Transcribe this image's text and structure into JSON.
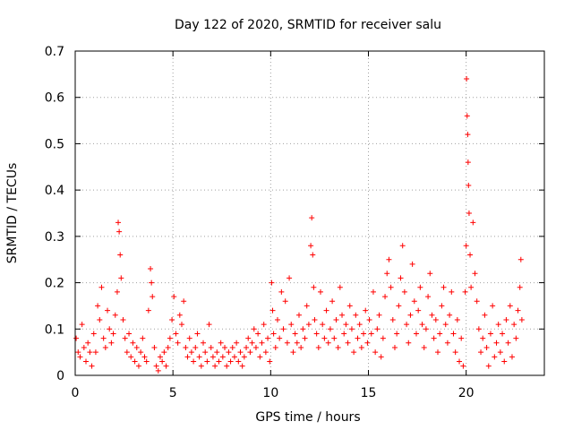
{
  "chart_data": {
    "type": "scatter",
    "title": "Day 122 of 2020, SRMTID for receiver salu",
    "xlabel": "GPS time / hours",
    "ylabel": "SRMTID / TECUs",
    "xlim": [
      0,
      24
    ],
    "ylim": [
      0,
      0.7
    ],
    "xticks": [
      0,
      5,
      10,
      15,
      20
    ],
    "xtick_labels": [
      "0",
      "5",
      "10",
      "15",
      "20"
    ],
    "yticks": [
      0,
      0.1,
      0.2,
      0.3,
      0.4,
      0.5,
      0.6,
      0.7
    ],
    "ytick_labels": [
      "0",
      "0.1",
      "0.2",
      "0.3",
      "0.4",
      "0.5",
      "0.6",
      "0.7"
    ],
    "grid": true,
    "marker": "+",
    "series": [
      {
        "name": "SRMTID",
        "color": "#ff0000",
        "points": [
          [
            0.05,
            0.08
          ],
          [
            0.15,
            0.05
          ],
          [
            0.25,
            0.04
          ],
          [
            0.35,
            0.11
          ],
          [
            0.45,
            0.06
          ],
          [
            0.55,
            0.03
          ],
          [
            0.65,
            0.07
          ],
          [
            0.75,
            0.05
          ],
          [
            0.85,
            0.02
          ],
          [
            0.95,
            0.09
          ],
          [
            1.05,
            0.05
          ],
          [
            1.15,
            0.15
          ],
          [
            1.25,
            0.12
          ],
          [
            1.35,
            0.19
          ],
          [
            1.45,
            0.08
          ],
          [
            1.55,
            0.06
          ],
          [
            1.65,
            0.14
          ],
          [
            1.75,
            0.1
          ],
          [
            1.85,
            0.07
          ],
          [
            1.95,
            0.09
          ],
          [
            2.05,
            0.13
          ],
          [
            2.15,
            0.18
          ],
          [
            2.2,
            0.33
          ],
          [
            2.25,
            0.31
          ],
          [
            2.3,
            0.26
          ],
          [
            2.35,
            0.21
          ],
          [
            2.45,
            0.12
          ],
          [
            2.55,
            0.08
          ],
          [
            2.65,
            0.05
          ],
          [
            2.75,
            0.09
          ],
          [
            2.85,
            0.04
          ],
          [
            2.95,
            0.07
          ],
          [
            3.05,
            0.03
          ],
          [
            3.15,
            0.06
          ],
          [
            3.25,
            0.02
          ],
          [
            3.35,
            0.05
          ],
          [
            3.45,
            0.08
          ],
          [
            3.55,
            0.04
          ],
          [
            3.65,
            0.03
          ],
          [
            3.75,
            0.14
          ],
          [
            3.85,
            0.23
          ],
          [
            3.9,
            0.2
          ],
          [
            3.95,
            0.17
          ],
          [
            4.05,
            0.06
          ],
          [
            4.15,
            0.02
          ],
          [
            4.25,
            0.01
          ],
          [
            4.35,
            0.04
          ],
          [
            4.45,
            0.03
          ],
          [
            4.55,
            0.05
          ],
          [
            4.65,
            0.02
          ],
          [
            4.75,
            0.06
          ],
          [
            4.85,
            0.08
          ],
          [
            4.95,
            0.12
          ],
          [
            5.05,
            0.17
          ],
          [
            5.15,
            0.09
          ],
          [
            5.25,
            0.07
          ],
          [
            5.35,
            0.13
          ],
          [
            5.45,
            0.11
          ],
          [
            5.55,
            0.16
          ],
          [
            5.65,
            0.06
          ],
          [
            5.75,
            0.04
          ],
          [
            5.85,
            0.08
          ],
          [
            5.95,
            0.05
          ],
          [
            6.05,
            0.03
          ],
          [
            6.15,
            0.06
          ],
          [
            6.25,
            0.09
          ],
          [
            6.35,
            0.04
          ],
          [
            6.45,
            0.02
          ],
          [
            6.55,
            0.07
          ],
          [
            6.65,
            0.05
          ],
          [
            6.75,
            0.03
          ],
          [
            6.85,
            0.11
          ],
          [
            6.95,
            0.06
          ],
          [
            7.05,
            0.04
          ],
          [
            7.15,
            0.02
          ],
          [
            7.25,
            0.05
          ],
          [
            7.35,
            0.03
          ],
          [
            7.45,
            0.07
          ],
          [
            7.55,
            0.04
          ],
          [
            7.65,
            0.06
          ],
          [
            7.75,
            0.02
          ],
          [
            7.85,
            0.05
          ],
          [
            7.95,
            0.03
          ],
          [
            8.05,
            0.06
          ],
          [
            8.15,
            0.04
          ],
          [
            8.25,
            0.07
          ],
          [
            8.35,
            0.03
          ],
          [
            8.45,
            0.05
          ],
          [
            8.55,
            0.02
          ],
          [
            8.65,
            0.04
          ],
          [
            8.75,
            0.06
          ],
          [
            8.85,
            0.08
          ],
          [
            8.95,
            0.05
          ],
          [
            9.05,
            0.07
          ],
          [
            9.15,
            0.1
          ],
          [
            9.25,
            0.06
          ],
          [
            9.35,
            0.09
          ],
          [
            9.45,
            0.04
          ],
          [
            9.55,
            0.07
          ],
          [
            9.65,
            0.11
          ],
          [
            9.75,
            0.05
          ],
          [
            9.85,
            0.08
          ],
          [
            9.95,
            0.03
          ],
          [
            10.05,
            0.2
          ],
          [
            10.1,
            0.14
          ],
          [
            10.15,
            0.09
          ],
          [
            10.25,
            0.06
          ],
          [
            10.35,
            0.12
          ],
          [
            10.45,
            0.08
          ],
          [
            10.55,
            0.18
          ],
          [
            10.65,
            0.1
          ],
          [
            10.75,
            0.16
          ],
          [
            10.85,
            0.07
          ],
          [
            10.95,
            0.21
          ],
          [
            11.05,
            0.11
          ],
          [
            11.15,
            0.05
          ],
          [
            11.25,
            0.09
          ],
          [
            11.35,
            0.07
          ],
          [
            11.45,
            0.13
          ],
          [
            11.55,
            0.06
          ],
          [
            11.65,
            0.1
          ],
          [
            11.75,
            0.08
          ],
          [
            11.85,
            0.15
          ],
          [
            11.95,
            0.11
          ],
          [
            12.05,
            0.28
          ],
          [
            12.1,
            0.34
          ],
          [
            12.15,
            0.26
          ],
          [
            12.2,
            0.19
          ],
          [
            12.25,
            0.12
          ],
          [
            12.35,
            0.09
          ],
          [
            12.45,
            0.06
          ],
          [
            12.55,
            0.18
          ],
          [
            12.65,
            0.11
          ],
          [
            12.75,
            0.08
          ],
          [
            12.85,
            0.14
          ],
          [
            12.95,
            0.07
          ],
          [
            13.05,
            0.1
          ],
          [
            13.15,
            0.16
          ],
          [
            13.25,
            0.08
          ],
          [
            13.35,
            0.12
          ],
          [
            13.45,
            0.06
          ],
          [
            13.55,
            0.19
          ],
          [
            13.65,
            0.13
          ],
          [
            13.75,
            0.09
          ],
          [
            13.85,
            0.11
          ],
          [
            13.95,
            0.07
          ],
          [
            14.05,
            0.15
          ],
          [
            14.15,
            0.1
          ],
          [
            14.25,
            0.05
          ],
          [
            14.35,
            0.13
          ],
          [
            14.45,
            0.08
          ],
          [
            14.55,
            0.11
          ],
          [
            14.65,
            0.06
          ],
          [
            14.75,
            0.09
          ],
          [
            14.85,
            0.14
          ],
          [
            14.95,
            0.07
          ],
          [
            15.05,
            0.12
          ],
          [
            15.15,
            0.09
          ],
          [
            15.25,
            0.18
          ],
          [
            15.35,
            0.05
          ],
          [
            15.45,
            0.1
          ],
          [
            15.55,
            0.13
          ],
          [
            15.65,
            0.04
          ],
          [
            15.75,
            0.08
          ],
          [
            15.85,
            0.17
          ],
          [
            15.95,
            0.22
          ],
          [
            16.05,
            0.25
          ],
          [
            16.15,
            0.19
          ],
          [
            16.25,
            0.12
          ],
          [
            16.35,
            0.06
          ],
          [
            16.45,
            0.09
          ],
          [
            16.55,
            0.15
          ],
          [
            16.65,
            0.21
          ],
          [
            16.75,
            0.28
          ],
          [
            16.85,
            0.18
          ],
          [
            16.95,
            0.11
          ],
          [
            17.05,
            0.07
          ],
          [
            17.15,
            0.13
          ],
          [
            17.25,
            0.24
          ],
          [
            17.35,
            0.16
          ],
          [
            17.45,
            0.09
          ],
          [
            17.55,
            0.14
          ],
          [
            17.65,
            0.19
          ],
          [
            17.75,
            0.11
          ],
          [
            17.85,
            0.06
          ],
          [
            17.95,
            0.1
          ],
          [
            18.05,
            0.17
          ],
          [
            18.15,
            0.22
          ],
          [
            18.25,
            0.13
          ],
          [
            18.35,
            0.08
          ],
          [
            18.45,
            0.12
          ],
          [
            18.55,
            0.05
          ],
          [
            18.65,
            0.09
          ],
          [
            18.75,
            0.15
          ],
          [
            18.85,
            0.19
          ],
          [
            18.95,
            0.11
          ],
          [
            19.05,
            0.07
          ],
          [
            19.15,
            0.13
          ],
          [
            19.25,
            0.18
          ],
          [
            19.35,
            0.09
          ],
          [
            19.45,
            0.05
          ],
          [
            19.55,
            0.12
          ],
          [
            19.65,
            0.03
          ],
          [
            19.75,
            0.08
          ],
          [
            19.85,
            0.02
          ],
          [
            19.95,
            0.18
          ],
          [
            20.0,
            0.28
          ],
          [
            20.02,
            0.64
          ],
          [
            20.05,
            0.56
          ],
          [
            20.08,
            0.52
          ],
          [
            20.1,
            0.46
          ],
          [
            20.12,
            0.41
          ],
          [
            20.15,
            0.35
          ],
          [
            20.2,
            0.26
          ],
          [
            20.25,
            0.19
          ],
          [
            20.35,
            0.33
          ],
          [
            20.45,
            0.22
          ],
          [
            20.55,
            0.16
          ],
          [
            20.65,
            0.1
          ],
          [
            20.75,
            0.05
          ],
          [
            20.85,
            0.08
          ],
          [
            20.95,
            0.13
          ],
          [
            21.05,
            0.06
          ],
          [
            21.15,
            0.02
          ],
          [
            21.25,
            0.09
          ],
          [
            21.35,
            0.15
          ],
          [
            21.45,
            0.04
          ],
          [
            21.55,
            0.07
          ],
          [
            21.65,
            0.11
          ],
          [
            21.75,
            0.05
          ],
          [
            21.85,
            0.09
          ],
          [
            21.95,
            0.03
          ],
          [
            22.05,
            0.12
          ],
          [
            22.15,
            0.07
          ],
          [
            22.25,
            0.15
          ],
          [
            22.35,
            0.04
          ],
          [
            22.45,
            0.11
          ],
          [
            22.55,
            0.08
          ],
          [
            22.65,
            0.14
          ],
          [
            22.75,
            0.19
          ],
          [
            22.8,
            0.25
          ],
          [
            22.85,
            0.12
          ]
        ]
      }
    ]
  }
}
